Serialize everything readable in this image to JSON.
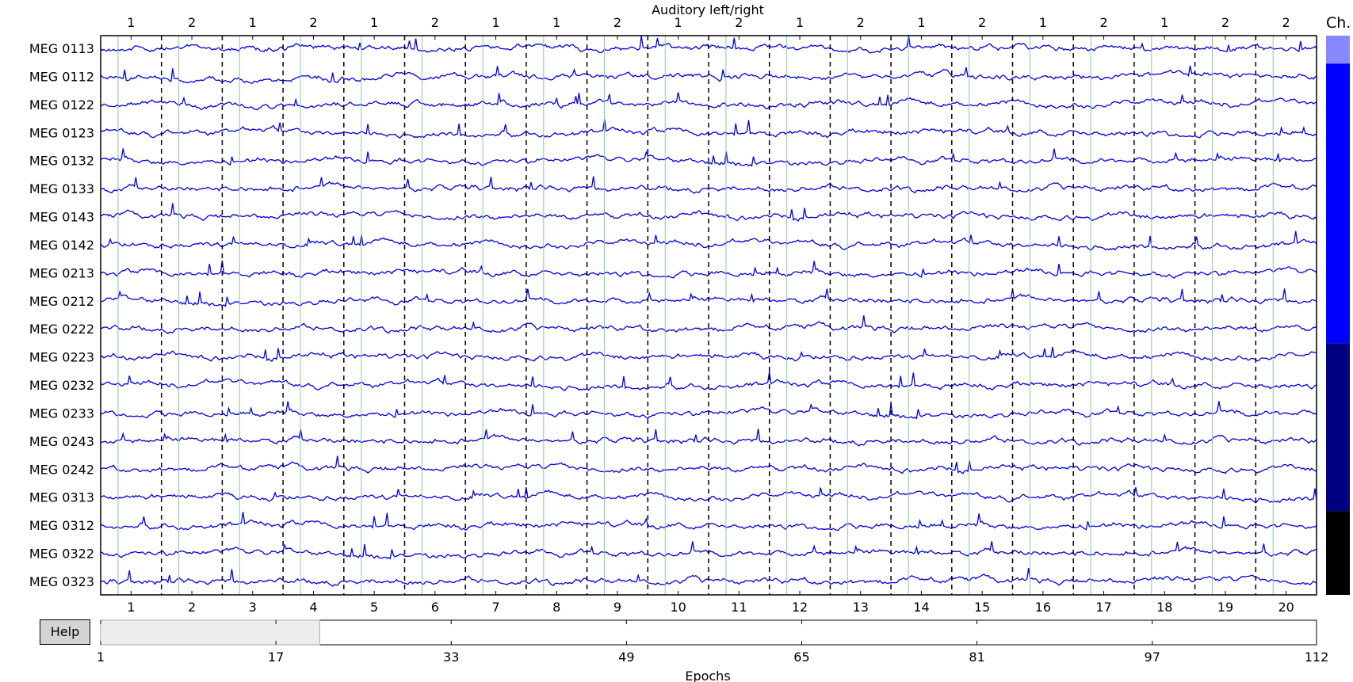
{
  "title": "Auditory left/right",
  "channel_bar_label": "Ch.",
  "help_label": "Help",
  "xlabel": "Epochs",
  "channels": [
    "MEG 0113",
    "MEG 0112",
    "MEG 0122",
    "MEG 0123",
    "MEG 0132",
    "MEG 0133",
    "MEG 0143",
    "MEG 0142",
    "MEG 0213",
    "MEG 0212",
    "MEG 0222",
    "MEG 0223",
    "MEG 0232",
    "MEG 0233",
    "MEG 0243",
    "MEG 0242",
    "MEG 0313",
    "MEG 0312",
    "MEG 0322",
    "MEG 0323"
  ],
  "epoch_numbers": [
    "1",
    "2",
    "3",
    "4",
    "5",
    "6",
    "7",
    "8",
    "9",
    "10",
    "11",
    "12",
    "13",
    "14",
    "15",
    "16",
    "17",
    "18",
    "19",
    "20"
  ],
  "epoch_event_ids": [
    "1",
    "2",
    "1",
    "2",
    "1",
    "2",
    "1",
    "1",
    "2",
    "1",
    "2",
    "1",
    "2",
    "1",
    "2",
    "1",
    "2",
    "1",
    "2",
    "2"
  ],
  "scrollbar": {
    "ticks": [
      "1",
      "17",
      "33",
      "49",
      "65",
      "81",
      "97",
      "112"
    ],
    "total_epochs": 112,
    "visible_start": 1,
    "visible_end": 20
  },
  "channel_groups": [
    {
      "start": 0,
      "end": 1,
      "color": "#8888ff"
    },
    {
      "start": 1,
      "end": 11,
      "color": "#0000ff"
    },
    {
      "start": 11,
      "end": 17,
      "color": "#000080"
    },
    {
      "start": 17,
      "end": 20,
      "color": "#000000"
    }
  ],
  "colors": {
    "trace": "#0000dd",
    "event_line": "#88cc99",
    "epoch_divider": "#000000",
    "scroll_fill": "#eeeeee"
  }
}
